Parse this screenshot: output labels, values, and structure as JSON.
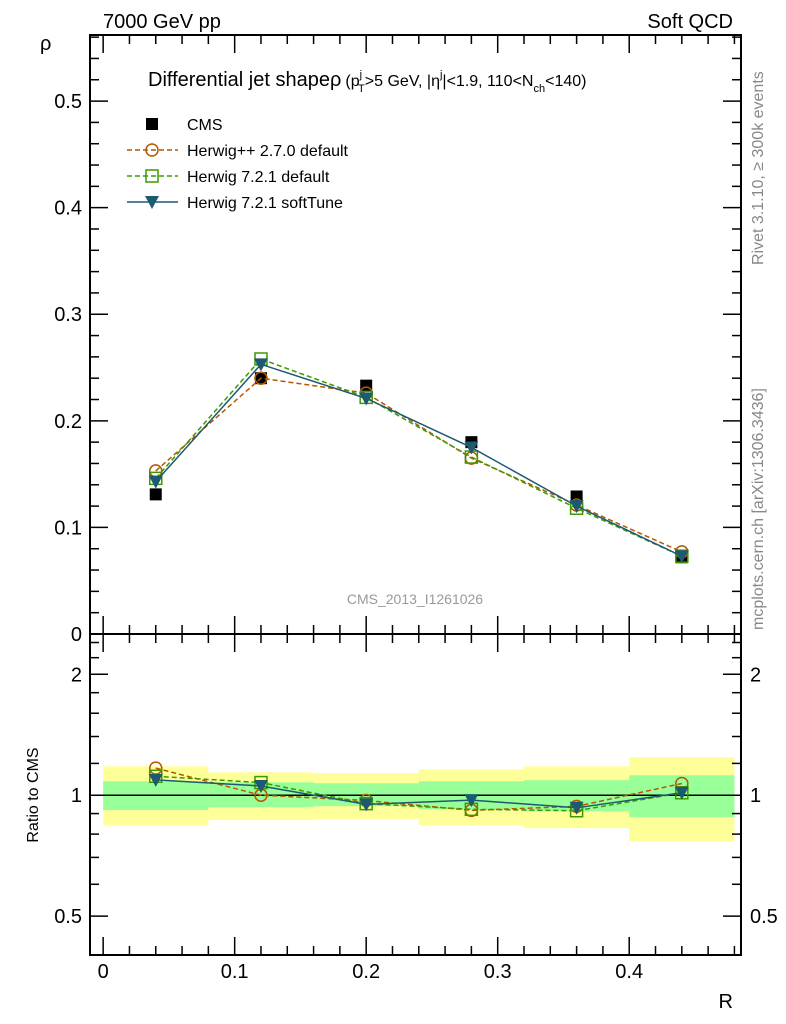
{
  "header": {
    "left": "7000 GeV pp",
    "right": "Soft QCD"
  },
  "side_texts": [
    "Rivet 3.1.10, ≥ 300k events",
    "mcplots.cern.ch [arXiv:1306.3436]"
  ],
  "watermark": "CMS_2013_I1261026",
  "title": {
    "main": "Differential jet shape",
    "rho": "ρ",
    "p1": "(p",
    "sup1": "j",
    "sub1": "T",
    "p2": ">5 GeV, |η",
    "sup2": "j",
    "p3": "|<1.9, 110<N",
    "sub2": "ch",
    "p4": "<140)"
  },
  "chart_data": [
    {
      "type": "line",
      "ylabel": "ρ",
      "xlabel": "R",
      "xlim": [
        -0.01,
        0.485
      ],
      "ylim": [
        0,
        0.562
      ],
      "xticks": [
        0,
        0.1,
        0.2,
        0.3,
        0.4
      ],
      "xtick_labels": [
        "0",
        "0.1",
        "0.2",
        "0.3",
        "0.4"
      ],
      "yticks": [
        0,
        0.1,
        0.2,
        0.3,
        0.4,
        0.5
      ],
      "ytick_labels": [
        "0",
        "0.1",
        "0.2",
        "0.3",
        "0.4",
        "0.5"
      ],
      "legend_placement": "top-left",
      "x": [
        0.04,
        0.12,
        0.2,
        0.28,
        0.36,
        0.44
      ],
      "series": [
        {
          "name": "CMS",
          "color": "#000000",
          "marker": "filled-square",
          "line": "none",
          "values": [
            0.131,
            0.24,
            0.233,
            0.18,
            0.129,
            0.072
          ]
        },
        {
          "name": "Herwig++ 2.7.0 default",
          "color": "#b35900",
          "marker": "open-circle",
          "line": "dashed",
          "values": [
            0.153,
            0.24,
            0.226,
            0.165,
            0.121,
            0.077
          ]
        },
        {
          "name": "Herwig 7.2.1 default",
          "color": "#3c9a00",
          "marker": "open-square",
          "line": "dashed",
          "values": [
            0.146,
            0.258,
            0.222,
            0.166,
            0.118,
            0.073
          ]
        },
        {
          "name": "Herwig 7.2.1 softTune",
          "color": "#1d5a72",
          "marker": "filled-triangle-down",
          "line": "solid",
          "values": [
            0.143,
            0.253,
            0.221,
            0.175,
            0.12,
            0.073
          ]
        }
      ]
    },
    {
      "type": "line",
      "ylabel": "Ratio to CMS",
      "xlabel": "R",
      "yscale": "log",
      "ylim": [
        0.4,
        2.52
      ],
      "yticks": [
        0.5,
        1,
        2
      ],
      "ytick_labels": [
        "0.5",
        "1",
        "2"
      ],
      "bins": [
        [
          0,
          0.08
        ],
        [
          0.08,
          0.16
        ],
        [
          0.16,
          0.24
        ],
        [
          0.24,
          0.32
        ],
        [
          0.32,
          0.4
        ],
        [
          0.4,
          0.48
        ]
      ],
      "band_outer": {
        "color": "#ffff99",
        "low": [
          0.84,
          0.867,
          0.872,
          0.842,
          0.828,
          0.768
        ],
        "high": [
          1.18,
          1.14,
          1.134,
          1.16,
          1.18,
          1.243
        ]
      },
      "band_inner": {
        "color": "#99ff99",
        "low": [
          0.918,
          0.934,
          0.939,
          0.923,
          0.912,
          0.882
        ],
        "high": [
          1.083,
          1.077,
          1.071,
          1.083,
          1.09,
          1.121
        ]
      }
    }
  ]
}
